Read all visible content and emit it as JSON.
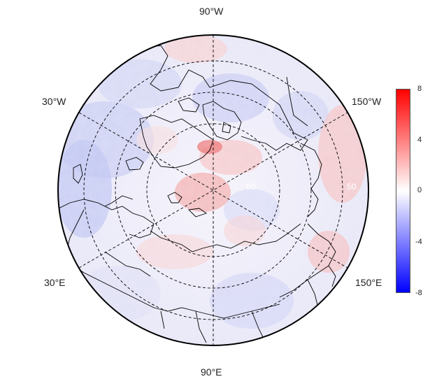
{
  "map": {
    "projection": "north-polar-stereographic",
    "lon_labels": {
      "top": "90°W",
      "upper_left": "30°W",
      "upper_right": "150°W",
      "lower_left": "30°E",
      "lower_right": "150°E",
      "bottom": "90°E"
    },
    "lat_labels": [
      "60",
      "50"
    ],
    "colormap": {
      "low": "#0000ff",
      "mid": "#ffffff",
      "high": "#ff0000"
    }
  },
  "colorbar": {
    "ticks": [
      "8",
      "4",
      "0",
      "-4",
      "-8"
    ],
    "range": [
      -8,
      8
    ]
  }
}
